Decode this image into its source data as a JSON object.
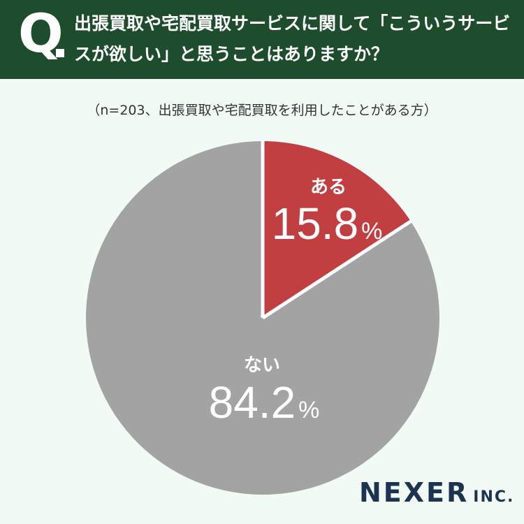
{
  "header": {
    "q_label": "Q",
    "question": "出張買取や宅配買取サービスに関して「こういうサービスが欲しい」と思うことはありますか？"
  },
  "subtitle": "（n=203、出張買取や宅配買取を利用したことがある方）",
  "chart_data": {
    "type": "pie",
    "slices": [
      {
        "label": "ある",
        "value": 15.8,
        "value_text": "15.8",
        "unit": "%",
        "color": "#c13e41"
      },
      {
        "label": "ない",
        "value": 84.2,
        "value_text": "84.2",
        "unit": "%",
        "color": "#a3a3a3"
      }
    ],
    "start": "12 o'clock",
    "direction": "clockwise",
    "separator_color": "#ffffff"
  },
  "logo": {
    "main": "NEXER",
    "suffix": "INC."
  }
}
